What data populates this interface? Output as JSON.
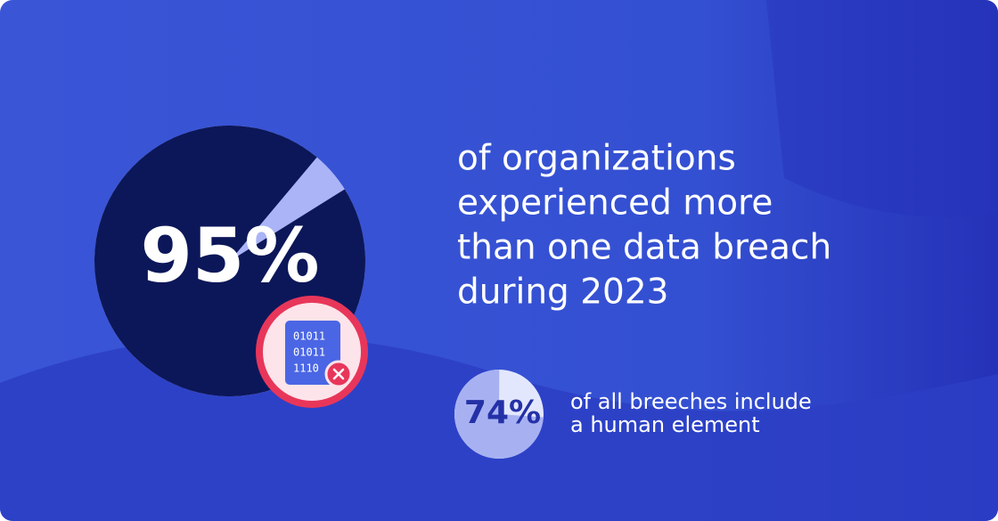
{
  "chart_data": [
    {
      "type": "pie",
      "values": [
        95
      ],
      "value_labels": [
        "95%"
      ],
      "color": "#0c1759",
      "caption": [
        "of organizations",
        "experienced more",
        "than one data breach",
        "during 2023"
      ],
      "icon_text": [
        "01011",
        "01011",
        "1110"
      ]
    },
    {
      "type": "pie",
      "values": [
        74
      ],
      "value_labels": [
        "74%"
      ],
      "color": "#a7b1f2",
      "caption": [
        "of all breeches include",
        "a human element"
      ]
    }
  ]
}
